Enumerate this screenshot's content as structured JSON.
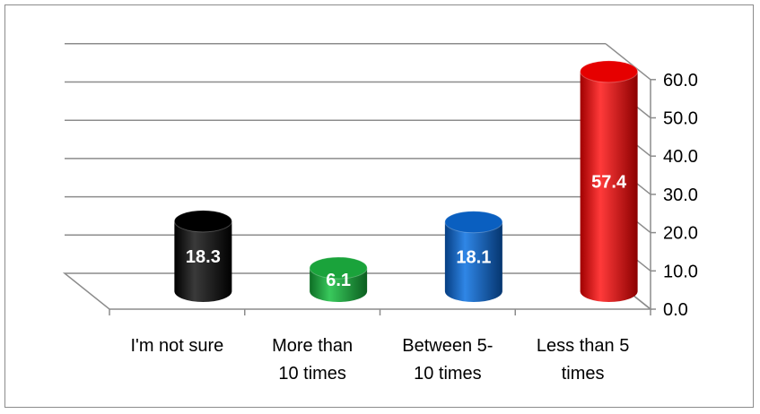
{
  "chart_data": {
    "type": "bar",
    "style": "3d-cylinder",
    "categories": [
      [
        "I'm not sure"
      ],
      [
        "More than",
        "10 times"
      ],
      [
        "Between 5-",
        "10 times"
      ],
      [
        "Less than 5",
        "times"
      ]
    ],
    "values": [
      18.3,
      6.1,
      18.1,
      57.4
    ],
    "value_labels": [
      "18.3",
      "6.1",
      "18.1",
      "57.4"
    ],
    "colors": [
      "#000000",
      "#1aa33b",
      "#0a5fc0",
      "#e60000"
    ],
    "ylim": [
      0,
      60
    ],
    "y_ticks": [
      "0.0",
      "10.0",
      "20.0",
      "30.0",
      "40.0",
      "50.0",
      "60.0"
    ],
    "y_axis_side": "right",
    "grid": true,
    "title": "",
    "xlabel": "",
    "ylabel": ""
  }
}
